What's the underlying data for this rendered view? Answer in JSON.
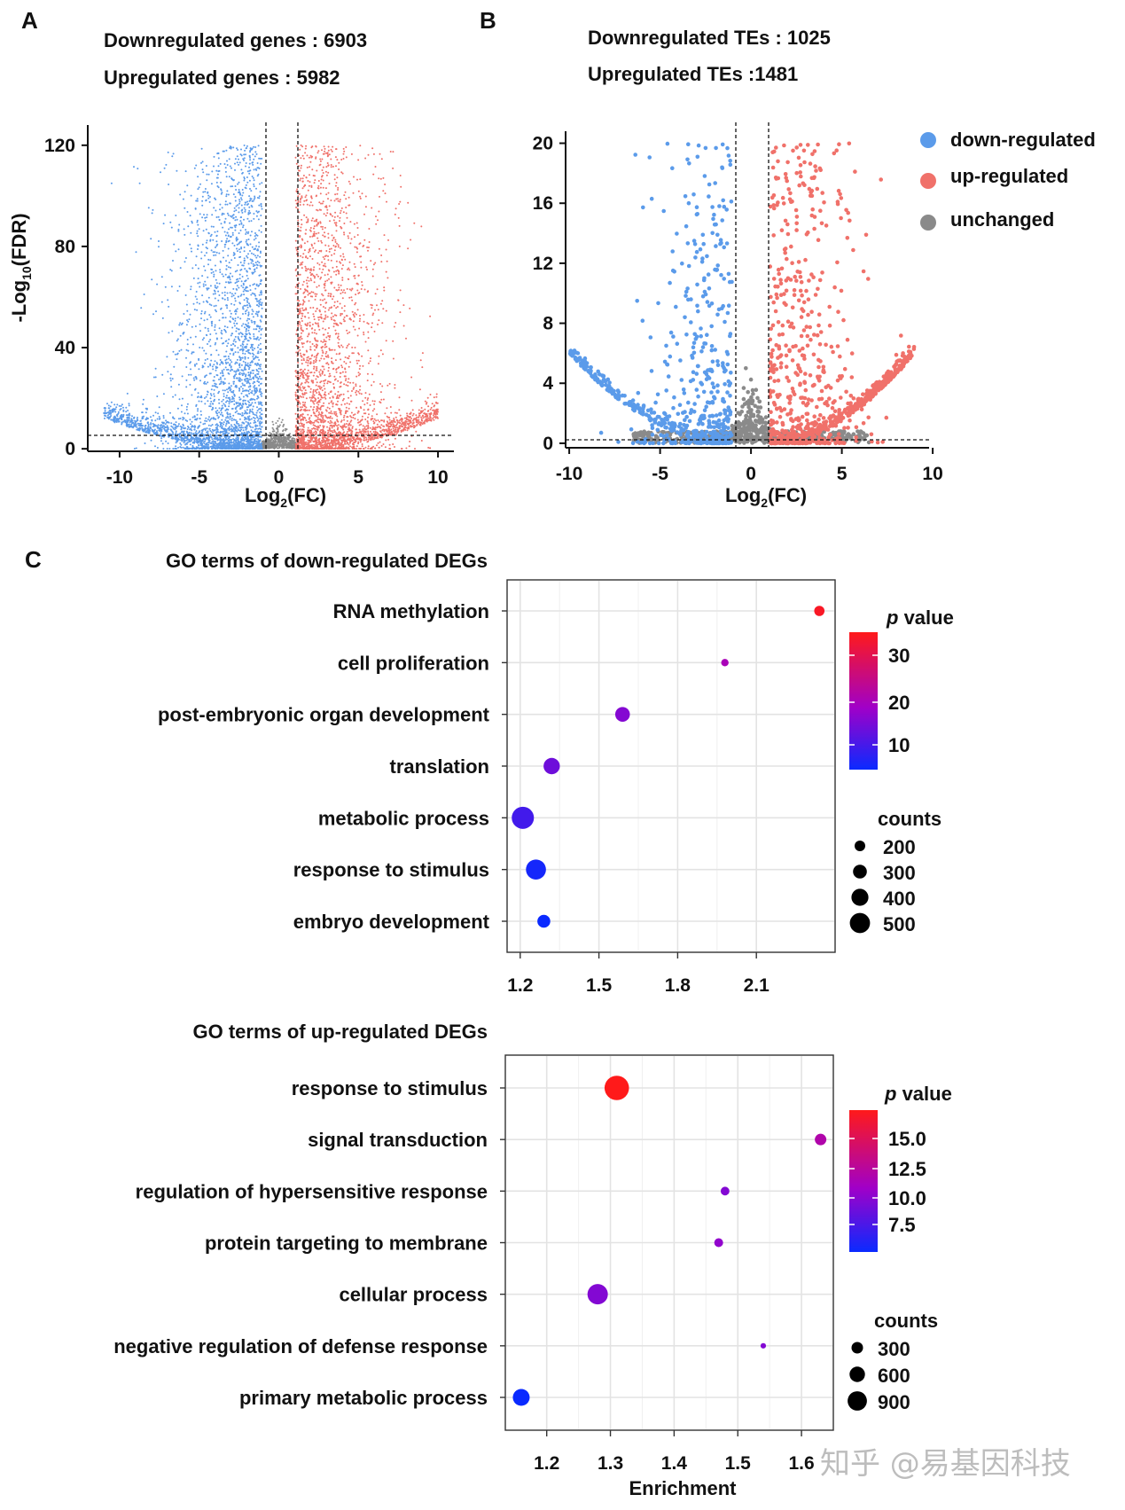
{
  "panels": {
    "A": "A",
    "B": "B",
    "C": "C"
  },
  "volcano_genes": {
    "stat_down": "Downregulated genes : 6903",
    "stat_up": "Upregulated genes : 5982"
  },
  "volcano_tes": {
    "stat_down": "Downregulated TEs : 1025",
    "stat_up": "Upregulated TEs :1481"
  },
  "go_down": {
    "title": "GO terms of down-regulated DEGs",
    "title_color": "#4472c4",
    "colorbar": {
      "title_p": "p",
      "title_rest": " value",
      "ticks": [
        "30",
        "20",
        "10"
      ]
    },
    "counts": {
      "title": "counts",
      "labels": [
        "200",
        "300",
        "400",
        "500"
      ]
    }
  },
  "go_up": {
    "title": "GO terms of up-regulated DEGs",
    "title_color": "#e07b24",
    "colorbar": {
      "title_p": "p",
      "title_rest": " value",
      "ticks": [
        "15.0",
        "12.5",
        "10.0",
        "7.5"
      ]
    },
    "counts": {
      "title": "counts",
      "labels": [
        "300",
        "600",
        "900"
      ]
    }
  },
  "watermark": "知乎 @易基因科技",
  "colors": {
    "down": "#5b9bea",
    "up": "#f0716a",
    "unchanged": "#8a8a8a",
    "grad_high": "#ff0000",
    "grad_mid": "#a000c8",
    "grad_low": "#0a2aff"
  },
  "chart_data": [
    {
      "type": "scatter",
      "subtype": "volcano",
      "id": "genes",
      "xlabel": "Log2(FC)",
      "ylabel": "-Log10(FDR)",
      "xlim": [
        -12,
        11
      ],
      "ylim": [
        -1,
        128
      ],
      "xticks": [
        -10,
        -5,
        0,
        5,
        10
      ],
      "yticks": [
        0,
        40,
        80,
        120
      ],
      "fc_thresholds": [
        -1,
        1
      ],
      "fdr_threshold": 0,
      "groups": [
        {
          "name": "down",
          "count": 6903,
          "x_range": [
            -11,
            -1
          ],
          "ymax": 120
        },
        {
          "name": "up",
          "count": 5982,
          "x_range": [
            1,
            10
          ],
          "ymax": 120
        },
        {
          "name": "unchanged",
          "x_range": [
            -1,
            1
          ],
          "ymax": 12
        }
      ]
    },
    {
      "type": "scatter",
      "subtype": "volcano",
      "id": "tes",
      "xlabel": "Log2(FC)",
      "ylabel": "",
      "xlim": [
        -10.2,
        9.8
      ],
      "ylim": [
        -0.3,
        20.8
      ],
      "xticks": [
        -10,
        -5,
        0,
        5,
        10
      ],
      "yticks": [
        0,
        4,
        8,
        12,
        16,
        20
      ],
      "fc_thresholds": [
        -1,
        1
      ],
      "fdr_threshold": 0,
      "legend": [
        "down-regulated",
        "up-regulated",
        "unchanged"
      ],
      "legend_position": "top-right",
      "groups": [
        {
          "name": "down",
          "count": 1025,
          "x_range": [
            -10,
            -1
          ],
          "ymax": 20
        },
        {
          "name": "up",
          "count": 1481,
          "x_range": [
            1,
            9
          ],
          "ymax": 20
        },
        {
          "name": "unchanged",
          "x_range": [
            -1,
            1
          ],
          "ymax": 5
        }
      ]
    },
    {
      "type": "scatter",
      "subtype": "bubble",
      "id": "go-down",
      "title": "GO terms of down-regulated DEGs",
      "xlabel": "",
      "xlim": [
        1.15,
        2.4
      ],
      "xticks": [
        "1.2",
        "1.5",
        "1.8",
        "2.1"
      ],
      "color_scale": "p value",
      "p_range": [
        5,
        35
      ],
      "terms": [
        {
          "term": "RNA methylation",
          "enrichment": 2.34,
          "p": 34,
          "count": 160
        },
        {
          "term": "cell proliferation",
          "enrichment": 1.98,
          "p": 20,
          "count": 80
        },
        {
          "term": "post-embryonic organ development",
          "enrichment": 1.59,
          "p": 16,
          "count": 280
        },
        {
          "term": "translation",
          "enrichment": 1.32,
          "p": 14,
          "count": 320
        },
        {
          "term": "metabolic process",
          "enrichment": 1.21,
          "p": 10,
          "count": 480
        },
        {
          "term": "response to stimulus",
          "enrichment": 1.26,
          "p": 6,
          "count": 420
        },
        {
          "term": "embryo development",
          "enrichment": 1.29,
          "p": 5,
          "count": 230
        }
      ]
    },
    {
      "type": "scatter",
      "subtype": "bubble",
      "id": "go-up",
      "title": "GO terms of up-regulated DEGs",
      "xlabel": "Enrichment",
      "xlim": [
        1.135,
        1.65
      ],
      "xticks": [
        "1.2",
        "1.3",
        "1.4",
        "1.5",
        "1.6"
      ],
      "color_scale": "p value",
      "p_range": [
        6,
        17
      ],
      "terms": [
        {
          "term": "response to stimulus",
          "enrichment": 1.31,
          "p": 17,
          "count": 900
        },
        {
          "term": "signal transduction",
          "enrichment": 1.63,
          "p": 12,
          "count": 330
        },
        {
          "term": "regulation of hypersensitive response",
          "enrichment": 1.48,
          "p": 10,
          "count": 200
        },
        {
          "term": "protein targeting to membrane",
          "enrichment": 1.47,
          "p": 10.5,
          "count": 210
        },
        {
          "term": "cellular process",
          "enrichment": 1.28,
          "p": 10,
          "count": 720
        },
        {
          "term": "negative regulation of defense response",
          "enrichment": 1.54,
          "p": 10,
          "count": 60
        },
        {
          "term": "primary metabolic process",
          "enrichment": 1.16,
          "p": 6,
          "count": 560
        }
      ]
    }
  ]
}
